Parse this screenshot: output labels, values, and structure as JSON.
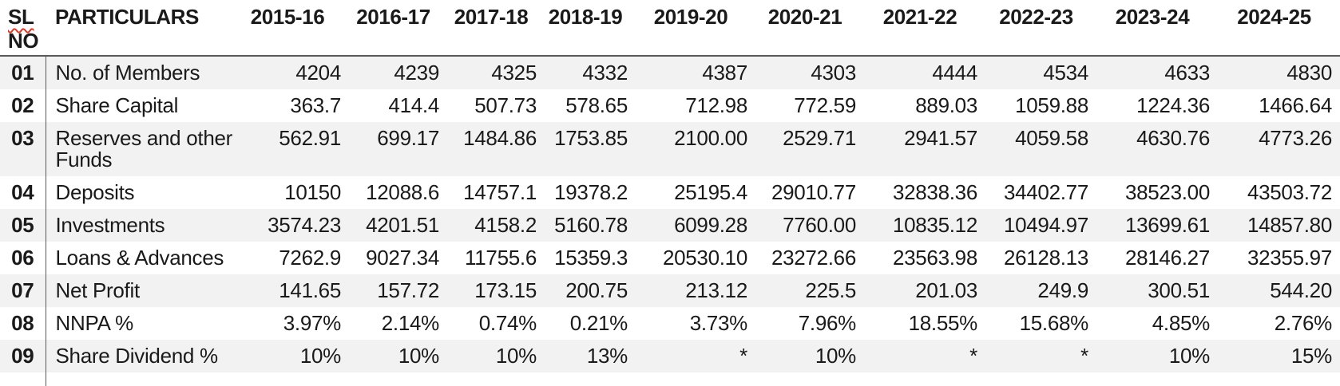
{
  "table": {
    "colors": {
      "stripe": "#f2f2f2",
      "text": "#1a1a1a",
      "rule": "#595959",
      "spellcheck_red": "#e03724"
    },
    "header": {
      "sl_line1": "SL",
      "sl_line2": "NO",
      "particulars": "PARTICULARS",
      "years": [
        "2015-16",
        "2016-17",
        "2017-18",
        "2018-19",
        "2019-20",
        "2020-21",
        "2021-22",
        "2022-23",
        "2023-24",
        "2024-25"
      ]
    },
    "rows": [
      {
        "sl": "01",
        "particulars": "No. of Members",
        "values": [
          "4204",
          "4239",
          "4325",
          "4332",
          "4387",
          "4303",
          "4444",
          "4534",
          "4633",
          "4830"
        ]
      },
      {
        "sl": "02",
        "particulars": "Share Capital",
        "values": [
          "363.7",
          "414.4",
          "507.73",
          "578.65",
          "712.98",
          "772.59",
          "889.03",
          "1059.88",
          "1224.36",
          "1466.64"
        ]
      },
      {
        "sl": "03",
        "particulars": "Reserves and other Funds",
        "values": [
          "562.91",
          "699.17",
          "1484.86",
          "1753.85",
          "2100.00",
          "2529.71",
          "2941.57",
          "4059.58",
          "4630.76",
          "4773.26"
        ]
      },
      {
        "sl": "04",
        "particulars": "Deposits",
        "values": [
          "10150",
          "12088.6",
          "14757.1",
          "19378.2",
          "25195.4",
          "29010.77",
          "32838.36",
          "34402.77",
          "38523.00",
          "43503.72"
        ]
      },
      {
        "sl": "05",
        "particulars": "Investments",
        "values": [
          "3574.23",
          "4201.51",
          "4158.2",
          "5160.78",
          "6099.28",
          "7760.00",
          "10835.12",
          "10494.97",
          "13699.61",
          "14857.80"
        ]
      },
      {
        "sl": "06",
        "particulars": "Loans & Advances",
        "values": [
          "7262.9",
          "9027.34",
          "11755.6",
          "15359.3",
          "20530.10",
          "23272.66",
          "23563.98",
          "26128.13",
          "28146.27",
          "32355.97"
        ]
      },
      {
        "sl": "07",
        "particulars": "Net Profit",
        "values": [
          "141.65",
          "157.72",
          "173.15",
          "200.75",
          "213.12",
          "225.5",
          "201.03",
          "249.9",
          "300.51",
          "544.20"
        ]
      },
      {
        "sl": "08",
        "particulars": "NNPA %",
        "values": [
          "3.97%",
          "2.14%",
          "0.74%",
          "0.21%",
          "3.73%",
          "7.96%",
          "18.55%",
          "15.68%",
          "4.85%",
          "2.76%"
        ]
      },
      {
        "sl": "09",
        "particulars": "Share Dividend %",
        "values": [
          "10%",
          "10%",
          "10%",
          "13%",
          "*",
          "10%",
          "*",
          "*",
          "10%",
          "15%"
        ]
      }
    ]
  }
}
